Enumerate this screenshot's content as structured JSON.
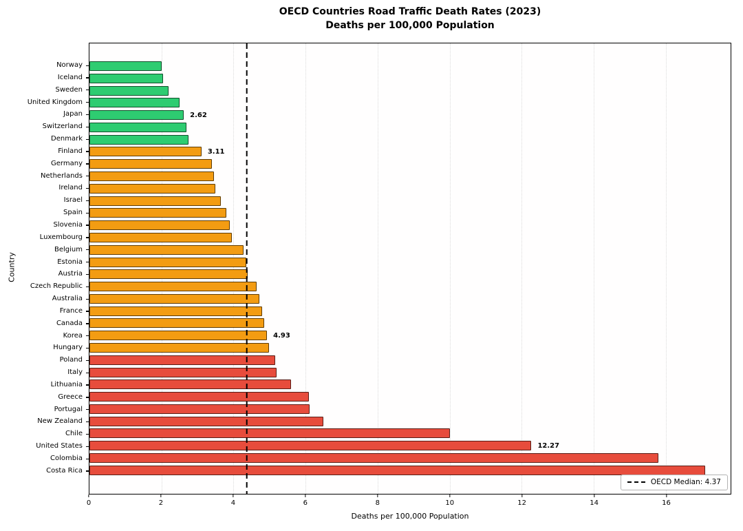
{
  "chart_data": {
    "type": "bar",
    "orientation": "horizontal",
    "title": "OECD Countries Road Traffic Death Rates (2023)",
    "subtitle": "Deaths per 100,000 Population",
    "xlabel": "Deaths per 100,000 Population",
    "ylabel": "Country",
    "xlim": [
      0,
      17.8
    ],
    "xticks": [
      0,
      2,
      4,
      6,
      8,
      10,
      12,
      14,
      16
    ],
    "grid": {
      "axis": "x",
      "style": "dotted",
      "color": "#dadada"
    },
    "median": {
      "value": 4.37,
      "legend_label": "OECD Median: 4.37",
      "line_style": "dashed",
      "line_color": "#000000"
    },
    "palette": {
      "green": "#2ecc71",
      "orange": "#f39c12",
      "red": "#e74c3c",
      "bar_edge": "rgba(0,0,0,0.62)"
    },
    "legend_position": "lower right",
    "countries": [
      {
        "name": "Norway",
        "value": 2.0,
        "band": "green"
      },
      {
        "name": "Iceland",
        "value": 2.05,
        "band": "green"
      },
      {
        "name": "Sweden",
        "value": 2.2,
        "band": "green"
      },
      {
        "name": "United Kingdom",
        "value": 2.5,
        "band": "green"
      },
      {
        "name": "Japan",
        "value": 2.62,
        "band": "green",
        "label": "2.62"
      },
      {
        "name": "Switzerland",
        "value": 2.7,
        "band": "green"
      },
      {
        "name": "Denmark",
        "value": 2.75,
        "band": "green"
      },
      {
        "name": "Finland",
        "value": 3.11,
        "band": "orange",
        "label": "3.11"
      },
      {
        "name": "Germany",
        "value": 3.4,
        "band": "orange"
      },
      {
        "name": "Netherlands",
        "value": 3.45,
        "band": "orange"
      },
      {
        "name": "Ireland",
        "value": 3.5,
        "band": "orange"
      },
      {
        "name": "Israel",
        "value": 3.65,
        "band": "orange"
      },
      {
        "name": "Spain",
        "value": 3.8,
        "band": "orange"
      },
      {
        "name": "Slovenia",
        "value": 3.9,
        "band": "orange"
      },
      {
        "name": "Luxembourg",
        "value": 3.95,
        "band": "orange"
      },
      {
        "name": "Belgium",
        "value": 4.28,
        "band": "orange"
      },
      {
        "name": "Estonia",
        "value": 4.35,
        "band": "orange"
      },
      {
        "name": "Austria",
        "value": 4.4,
        "band": "orange"
      },
      {
        "name": "Czech Republic",
        "value": 4.65,
        "band": "orange"
      },
      {
        "name": "Australia",
        "value": 4.72,
        "band": "orange"
      },
      {
        "name": "France",
        "value": 4.8,
        "band": "orange"
      },
      {
        "name": "Canada",
        "value": 4.85,
        "band": "orange"
      },
      {
        "name": "Korea",
        "value": 4.93,
        "band": "orange",
        "label": "4.93"
      },
      {
        "name": "Hungary",
        "value": 4.98,
        "band": "orange"
      },
      {
        "name": "Poland",
        "value": 5.15,
        "band": "red"
      },
      {
        "name": "Italy",
        "value": 5.2,
        "band": "red"
      },
      {
        "name": "Lithuania",
        "value": 5.6,
        "band": "red"
      },
      {
        "name": "Greece",
        "value": 6.1,
        "band": "red"
      },
      {
        "name": "Portugal",
        "value": 6.12,
        "band": "red"
      },
      {
        "name": "New Zealand",
        "value": 6.5,
        "band": "red"
      },
      {
        "name": "Chile",
        "value": 10.0,
        "band": "red"
      },
      {
        "name": "United States",
        "value": 12.27,
        "band": "red",
        "label": "12.27"
      },
      {
        "name": "Colombia",
        "value": 15.8,
        "band": "red"
      },
      {
        "name": "Costa Rica",
        "value": 17.1,
        "band": "red"
      }
    ]
  }
}
